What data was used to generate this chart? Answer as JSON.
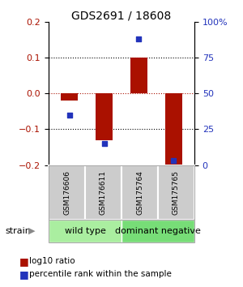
{
  "title": "GDS2691 / 18608",
  "samples": [
    "GSM176606",
    "GSM176611",
    "GSM175764",
    "GSM175765"
  ],
  "log10_ratio": [
    -0.02,
    -0.13,
    0.1,
    -0.2
  ],
  "percentile_rank": [
    35,
    15,
    88,
    3
  ],
  "left_ylim": [
    -0.2,
    0.2
  ],
  "right_ylim": [
    0,
    100
  ],
  "left_yticks": [
    -0.2,
    -0.1,
    0.0,
    0.1,
    0.2
  ],
  "right_yticks": [
    0,
    25,
    50,
    75,
    100
  ],
  "right_yticklabels": [
    "0",
    "25",
    "50",
    "75",
    "100%"
  ],
  "dotted_lines_black": [
    -0.1,
    0.1
  ],
  "dotted_line_red": 0.0,
  "bar_color": "#aa1100",
  "dot_color": "#2233bb",
  "bar_width": 0.5,
  "strain_info": [
    {
      "label": "wild type",
      "color": "#aaeea0",
      "span": [
        0,
        2
      ]
    },
    {
      "label": "dominant negative",
      "color": "#77dd77",
      "span": [
        2,
        4
      ]
    }
  ],
  "legend_red_label": "log10 ratio",
  "legend_blue_label": "percentile rank within the sample",
  "strain_text": "strain",
  "arrow": "▶",
  "sample_box_color": "#cccccc",
  "plot_border_color": "#aaaaaa",
  "title_fontsize": 10,
  "tick_fontsize": 8,
  "sample_fontsize": 6.5,
  "legend_fontsize": 7.5,
  "strain_fontsize": 8
}
